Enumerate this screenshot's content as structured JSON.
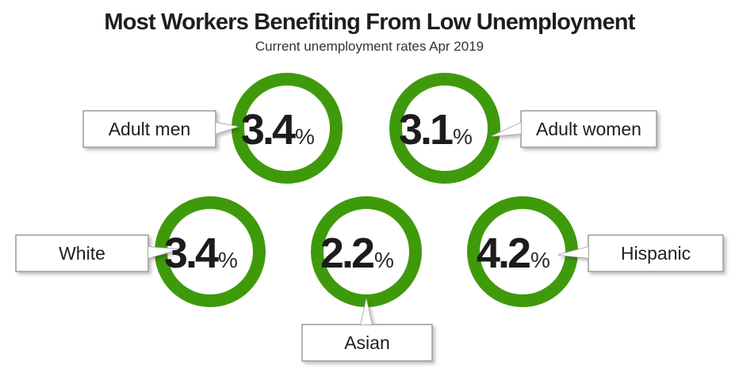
{
  "title": "Most Workers Benefiting From Low Unemployment",
  "subtitle": "Current unemployment rates Apr 2019",
  "colors": {
    "ring": "#3f9a0b",
    "text": "#1c1c1c",
    "callout_border": "#9a9a9a"
  },
  "chart_data": {
    "type": "other",
    "title": "Most Workers Benefiting From Low Unemployment",
    "subtitle": "Current unemployment rates Apr 2019",
    "unit": "%",
    "categories": [
      "Adult men",
      "Adult women",
      "White",
      "Asian",
      "Hispanic"
    ],
    "values": [
      3.4,
      3.1,
      3.4,
      2.2,
      4.2
    ],
    "value_labels": [
      "3.4",
      "3.1",
      "3.4",
      "2.2",
      "4.2"
    ]
  }
}
